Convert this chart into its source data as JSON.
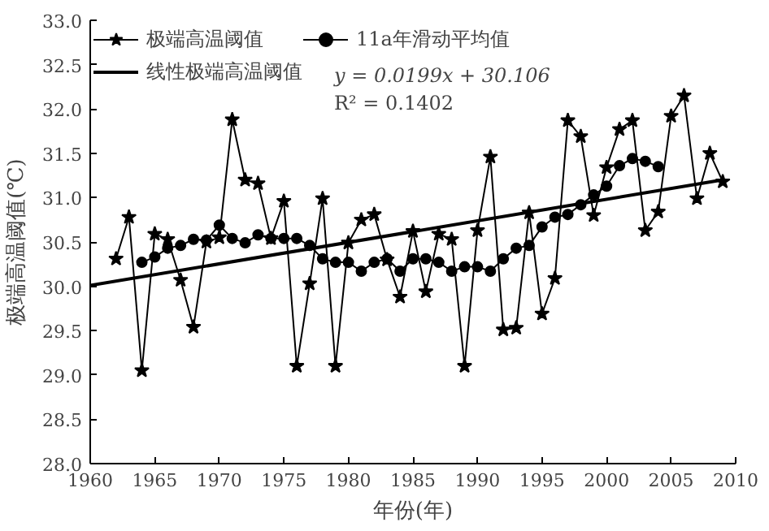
{
  "chart_data": {
    "type": "line",
    "xlabel": "年份(年)",
    "ylabel": "极端高温阈值(℃)",
    "xlim": [
      1960,
      2010
    ],
    "ylim": [
      28,
      33
    ],
    "xticks": [
      1960,
      1965,
      1970,
      1975,
      1980,
      1985,
      1990,
      1995,
      2000,
      2005,
      2010
    ],
    "yticks": [
      {
        "value": 28,
        "label": "28.0"
      },
      {
        "value": 28.5,
        "label": "28.5"
      },
      {
        "value": 29,
        "label": "29.0"
      },
      {
        "value": 29.5,
        "label": "29.5"
      },
      {
        "value": 30,
        "label": "30.0"
      },
      {
        "value": 30.5,
        "label": "30.5"
      },
      {
        "value": 31,
        "label": "31.0"
      },
      {
        "value": 31.5,
        "label": "31.5"
      },
      {
        "value": 32,
        "label": "32.0"
      },
      {
        "value": 32.5,
        "label": "32.5"
      },
      {
        "value": 33,
        "label": "33.0"
      }
    ],
    "grid": false,
    "legend": "top left",
    "annotations": [
      "y = 0.0199x + 30.106",
      "R² = 0.1402"
    ],
    "series": [
      {
        "name": "极端高温阈值",
        "color": "#000000",
        "marker": "star",
        "x": [
          1962,
          1963,
          1964,
          1965,
          1966,
          1967,
          1968,
          1969,
          1970,
          1971,
          1972,
          1973,
          1974,
          1975,
          1976,
          1977,
          1978,
          1979,
          1980,
          1981,
          1982,
          1983,
          1984,
          1985,
          1986,
          1987,
          1988,
          1989,
          1990,
          1991,
          1992,
          1993,
          1994,
          1995,
          1996,
          1997,
          1998,
          1999,
          2000,
          2001,
          2002,
          2003,
          2004,
          2005,
          2006,
          2007,
          2008,
          2009
        ],
        "values": [
          30.31,
          30.78,
          29.05,
          30.59,
          30.53,
          30.07,
          29.54,
          30.5,
          30.55,
          31.88,
          31.2,
          31.16,
          30.54,
          30.96,
          29.1,
          30.03,
          30.99,
          29.1,
          30.49,
          30.75,
          30.81,
          30.3,
          29.88,
          30.62,
          29.94,
          30.59,
          30.53,
          29.1,
          30.63,
          31.46,
          29.51,
          29.53,
          30.83,
          29.69,
          30.09,
          31.87,
          31.69,
          30.8,
          31.34,
          31.77,
          31.87,
          30.63,
          30.84,
          31.92,
          32.15,
          30.99,
          31.5,
          31.18
        ]
      },
      {
        "name": "11a年滑动平均值",
        "color": "#000000",
        "marker": "circle",
        "x": [
          1964,
          1965,
          1966,
          1967,
          1968,
          1969,
          1970,
          1971,
          1972,
          1973,
          1974,
          1975,
          1976,
          1977,
          1978,
          1979,
          1980,
          1981,
          1982,
          1983,
          1984,
          1985,
          1986,
          1987,
          1988,
          1989,
          1990,
          1991,
          1992,
          1993,
          1994,
          1995,
          1996,
          1997,
          1998,
          1999,
          2000,
          2001,
          2002,
          2003,
          2004
        ],
        "values": [
          30.27,
          30.33,
          30.43,
          30.46,
          30.53,
          30.52,
          30.69,
          30.54,
          30.49,
          30.58,
          30.54,
          30.54,
          30.54,
          30.46,
          30.31,
          30.27,
          30.27,
          30.17,
          30.27,
          30.31,
          30.17,
          30.31,
          30.31,
          30.27,
          30.17,
          30.22,
          30.22,
          30.17,
          30.31,
          30.43,
          30.46,
          30.67,
          30.78,
          30.81,
          30.92,
          31.03,
          31.13,
          31.36,
          31.44,
          31.41,
          31.35
        ]
      },
      {
        "name": "线性极端高温阈值",
        "color": "#000000",
        "marker": "none",
        "x": [
          1960,
          2009
        ],
        "values": [
          30.01,
          31.2
        ]
      }
    ]
  }
}
